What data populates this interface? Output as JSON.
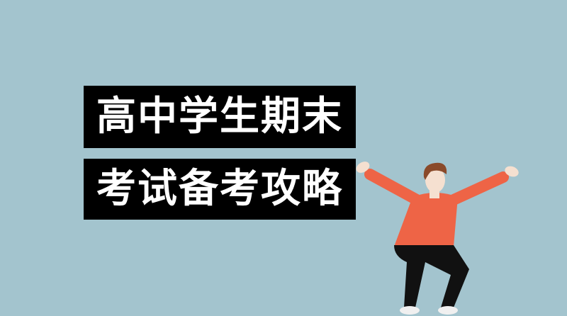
{
  "banner": {
    "title_line_1": "高中学生期末",
    "title_line_2": "考试备考攻略"
  },
  "colors": {
    "background": "#a3c4ce",
    "title_box": "#000000",
    "title_text": "#ffffff",
    "shirt": "#ee6446",
    "skin": "#f5e0d0",
    "hair": "#8a4a2a",
    "pants": "#111111"
  },
  "illustration": {
    "subject": "cheering-student-figure"
  }
}
